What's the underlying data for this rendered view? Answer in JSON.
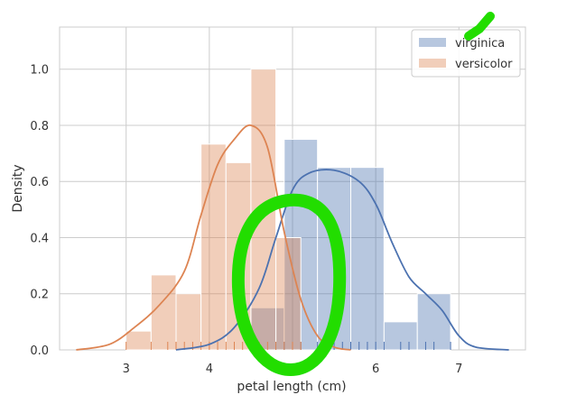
{
  "chart_data": {
    "type": "bar",
    "xlabel": "petal length (cm)",
    "ylabel": "Density",
    "xlim": [
      2.2,
      7.8
    ],
    "ylim": [
      0,
      1.15
    ],
    "x_ticks": [
      "3",
      "4",
      "5",
      "6",
      "7"
    ],
    "y_ticks": [
      "0.0",
      "0.2",
      "0.4",
      "0.6",
      "0.8",
      "1.0"
    ],
    "grid": true,
    "legend_position": "top-right",
    "series": [
      {
        "name": "virginica",
        "color": "#4c72b0",
        "bin_edges": [
          4.5,
          4.9,
          5.3,
          5.7,
          6.1,
          6.5,
          6.9
        ],
        "density": [
          0.15,
          0.75,
          0.65,
          0.65,
          0.1,
          0.2
        ],
        "kde": [
          [
            3.6,
            0.0
          ],
          [
            4.0,
            0.02
          ],
          [
            4.3,
            0.08
          ],
          [
            4.6,
            0.22
          ],
          [
            4.8,
            0.4
          ],
          [
            5.0,
            0.57
          ],
          [
            5.2,
            0.63
          ],
          [
            5.5,
            0.64
          ],
          [
            5.8,
            0.6
          ],
          [
            6.0,
            0.52
          ],
          [
            6.2,
            0.38
          ],
          [
            6.4,
            0.26
          ],
          [
            6.6,
            0.2
          ],
          [
            6.8,
            0.14
          ],
          [
            7.0,
            0.05
          ],
          [
            7.2,
            0.01
          ],
          [
            7.6,
            0.0
          ]
        ],
        "rug": [
          4.5,
          4.8,
          4.9,
          5.0,
          5.1,
          5.3,
          5.4,
          5.5,
          5.6,
          5.7,
          5.8,
          5.9,
          6.0,
          6.1,
          6.3,
          6.4,
          6.6,
          6.7,
          6.9
        ]
      },
      {
        "name": "versicolor",
        "color": "#dd8452",
        "bin_edges": [
          3.0,
          3.3,
          3.6,
          3.9,
          4.2,
          4.5,
          4.8,
          5.1
        ],
        "density": [
          0.067,
          0.267,
          0.2,
          0.733,
          0.667,
          1.0,
          0.4
        ],
        "kde": [
          [
            2.4,
            0.0
          ],
          [
            2.8,
            0.02
          ],
          [
            3.1,
            0.08
          ],
          [
            3.4,
            0.16
          ],
          [
            3.7,
            0.28
          ],
          [
            3.9,
            0.48
          ],
          [
            4.1,
            0.66
          ],
          [
            4.3,
            0.75
          ],
          [
            4.5,
            0.8
          ],
          [
            4.7,
            0.72
          ],
          [
            4.9,
            0.42
          ],
          [
            5.1,
            0.18
          ],
          [
            5.3,
            0.05
          ],
          [
            5.5,
            0.01
          ],
          [
            5.7,
            0.0
          ]
        ],
        "rug": [
          3.0,
          3.3,
          3.5,
          3.6,
          3.7,
          3.8,
          3.9,
          4.0,
          4.1,
          4.2,
          4.3,
          4.4,
          4.5,
          4.6,
          4.7,
          4.8,
          4.9,
          5.0,
          5.1
        ]
      }
    ]
  },
  "annotations": {
    "highlight_color": "#22dd00"
  }
}
